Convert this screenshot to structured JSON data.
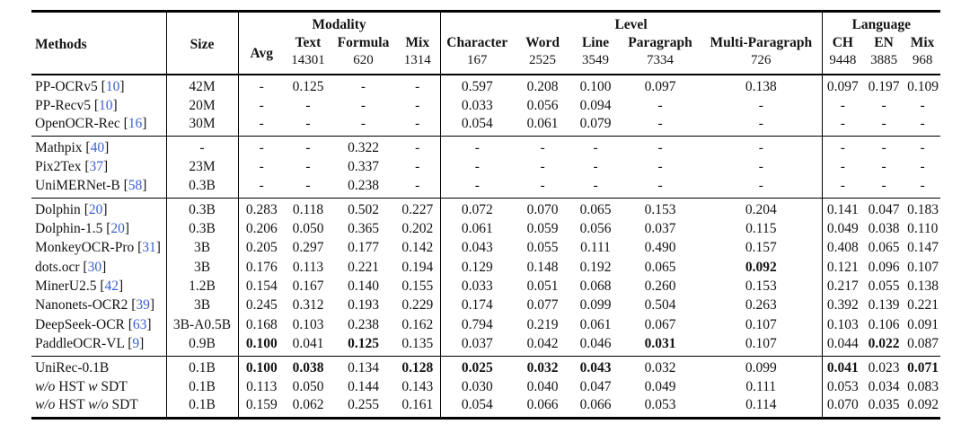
{
  "punct": {
    "bracket_open": "[",
    "bracket_close": "]"
  },
  "colors": {
    "citation_blue": "#3A5FCD",
    "text_black": "#141414",
    "rule_black": "#000000"
  },
  "table": {
    "col_groups": [
      {
        "label": "Modality",
        "span": 4
      },
      {
        "label": "Level",
        "span": 5
      },
      {
        "label": "Language",
        "span": 3
      }
    ],
    "columns": [
      {
        "key": "methods",
        "label": "Methods"
      },
      {
        "key": "size",
        "label": "Size"
      },
      {
        "key": "avg",
        "label": "Avg",
        "count": ""
      },
      {
        "key": "text",
        "label": "Text",
        "count": "14301"
      },
      {
        "key": "formula",
        "label": "Formula",
        "count": "620"
      },
      {
        "key": "mix-modality",
        "label": "Mix",
        "count": "1314"
      },
      {
        "key": "character",
        "label": "Character",
        "count": "167"
      },
      {
        "key": "word",
        "label": "Word",
        "count": "2525"
      },
      {
        "key": "line",
        "label": "Line",
        "count": "3549"
      },
      {
        "key": "paragraph",
        "label": "Paragraph",
        "count": "7334"
      },
      {
        "key": "multi-paragraph",
        "label": "Multi-Paragraph",
        "count": "726"
      },
      {
        "key": "ch",
        "label": "CH",
        "count": "9448"
      },
      {
        "key": "en",
        "label": "EN",
        "count": "3885"
      },
      {
        "key": "mix-language",
        "label": "Mix",
        "count": "968"
      }
    ],
    "groups": [
      {
        "rows": [
          {
            "method": "PP-OCRv5",
            "cite": "10",
            "size": "42M",
            "values": [
              "-",
              "0.125",
              "-",
              "-",
              "0.597",
              "0.208",
              "0.100",
              "0.097",
              "0.138",
              "0.097",
              "0.197",
              "0.109"
            ],
            "bold": []
          },
          {
            "method": "PP-Recv5",
            "cite": "10",
            "size": "20M",
            "values": [
              "-",
              "-",
              "-",
              "-",
              "0.033",
              "0.056",
              "0.094",
              "-",
              "-",
              "-",
              "-",
              "-"
            ],
            "bold": []
          },
          {
            "method": "OpenOCR-Rec",
            "cite": "16",
            "size": "30M",
            "values": [
              "-",
              "-",
              "-",
              "-",
              "0.054",
              "0.061",
              "0.079",
              "-",
              "-",
              "-",
              "-",
              "-"
            ],
            "bold": []
          }
        ]
      },
      {
        "rows": [
          {
            "method": "Mathpix",
            "cite": "40",
            "size": "-",
            "values": [
              "-",
              "-",
              "0.322",
              "-",
              "-",
              "-",
              "-",
              "-",
              "-",
              "-",
              "-",
              "-"
            ],
            "bold": []
          },
          {
            "method": "Pix2Tex",
            "cite": "37",
            "size": "23M",
            "values": [
              "-",
              "-",
              "0.337",
              "-",
              "-",
              "-",
              "-",
              "-",
              "-",
              "-",
              "-",
              "-"
            ],
            "bold": []
          },
          {
            "method": "UniMERNet-B",
            "cite": "58",
            "size": "0.3B",
            "values": [
              "-",
              "-",
              "0.238",
              "-",
              "-",
              "-",
              "-",
              "-",
              "-",
              "-",
              "-",
              "-"
            ],
            "bold": []
          }
        ]
      },
      {
        "rows": [
          {
            "method": "Dolphin",
            "cite": "20",
            "size": "0.3B",
            "values": [
              "0.283",
              "0.118",
              "0.502",
              "0.227",
              "0.072",
              "0.070",
              "0.065",
              "0.153",
              "0.204",
              "0.141",
              "0.047",
              "0.183"
            ],
            "bold": []
          },
          {
            "method": "Dolphin-1.5",
            "cite": "20",
            "size": "0.3B",
            "values": [
              "0.206",
              "0.050",
              "0.365",
              "0.202",
              "0.061",
              "0.059",
              "0.056",
              "0.037",
              "0.115",
              "0.049",
              "0.038",
              "0.110"
            ],
            "bold": []
          },
          {
            "method": "MonkeyOCR-Pro",
            "cite": "31",
            "size": "3B",
            "values": [
              "0.205",
              "0.297",
              "0.177",
              "0.142",
              "0.043",
              "0.055",
              "0.111",
              "0.490",
              "0.157",
              "0.408",
              "0.065",
              "0.147"
            ],
            "bold": []
          },
          {
            "method": "dots.ocr",
            "cite": "30",
            "size": "3B",
            "values": [
              "0.176",
              "0.113",
              "0.221",
              "0.194",
              "0.129",
              "0.148",
              "0.192",
              "0.065",
              "0.092",
              "0.121",
              "0.096",
              "0.107"
            ],
            "bold": [
              8
            ]
          },
          {
            "method": "MinerU2.5",
            "cite": "42",
            "size": "1.2B",
            "values": [
              "0.154",
              "0.167",
              "0.140",
              "0.155",
              "0.033",
              "0.051",
              "0.068",
              "0.260",
              "0.153",
              "0.217",
              "0.055",
              "0.138"
            ],
            "bold": []
          },
          {
            "method": "Nanonets-OCR2",
            "cite": "39",
            "size": "3B",
            "values": [
              "0.245",
              "0.312",
              "0.193",
              "0.229",
              "0.174",
              "0.077",
              "0.099",
              "0.504",
              "0.263",
              "0.392",
              "0.139",
              "0.221"
            ],
            "bold": []
          },
          {
            "method": "DeepSeek-OCR",
            "cite": "63",
            "size": "3B-A0.5B",
            "values": [
              "0.168",
              "0.103",
              "0.238",
              "0.162",
              "0.794",
              "0.219",
              "0.061",
              "0.067",
              "0.107",
              "0.103",
              "0.106",
              "0.091"
            ],
            "bold": []
          },
          {
            "method": "PaddleOCR-VL",
            "cite": "9",
            "size": "0.9B",
            "values": [
              "0.100",
              "0.041",
              "0.125",
              "0.135",
              "0.037",
              "0.042",
              "0.046",
              "0.031",
              "0.107",
              "0.044",
              "0.022",
              "0.087"
            ],
            "bold": [
              0,
              2,
              7,
              10
            ]
          }
        ]
      },
      {
        "rows": [
          {
            "method": "UniRec-0.1B",
            "size": "0.1B",
            "values": [
              "0.100",
              "0.038",
              "0.134",
              "0.128",
              "0.025",
              "0.032",
              "0.043",
              "0.032",
              "0.099",
              "0.041",
              "0.023",
              "0.071"
            ],
            "bold": [
              0,
              1,
              3,
              4,
              5,
              6,
              9,
              11
            ]
          },
          {
            "method_parts": [
              [
                "w/o",
                true
              ],
              [
                " HST ",
                false
              ],
              [
                "w",
                true
              ],
              [
                " SDT",
                false
              ]
            ],
            "size": "0.1B",
            "values": [
              "0.113",
              "0.050",
              "0.144",
              "0.143",
              "0.030",
              "0.040",
              "0.047",
              "0.049",
              "0.111",
              "0.053",
              "0.034",
              "0.083"
            ],
            "bold": []
          },
          {
            "method_parts": [
              [
                "w/o",
                true
              ],
              [
                " HST ",
                false
              ],
              [
                "w/o",
                true
              ],
              [
                " SDT",
                false
              ]
            ],
            "size": "0.1B",
            "values": [
              "0.159",
              "0.062",
              "0.255",
              "0.161",
              "0.054",
              "0.066",
              "0.066",
              "0.053",
              "0.114",
              "0.070",
              "0.035",
              "0.092"
            ],
            "bold": []
          }
        ]
      }
    ]
  }
}
